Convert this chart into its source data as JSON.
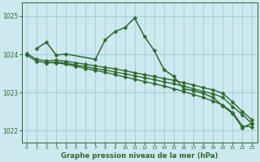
{
  "title": "Graphe pression niveau de la mer (hPa)",
  "xlabel_hours": [
    0,
    1,
    2,
    3,
    4,
    5,
    6,
    7,
    8,
    9,
    10,
    11,
    12,
    13,
    14,
    15,
    16,
    17,
    18,
    19,
    20,
    21,
    22,
    23
  ],
  "series": [
    {
      "x": [
        1,
        2,
        3,
        4,
        7,
        8,
        9,
        10,
        11,
        12,
        13,
        14,
        15,
        16,
        17,
        18,
        19,
        20,
        21,
        22,
        23
      ],
      "y": [
        1024.15,
        1024.32,
        1023.98,
        1024.01,
        1023.87,
        1024.38,
        1024.6,
        1024.7,
        1024.95,
        1024.47,
        1024.1,
        1023.6,
        1023.42,
        1023.1,
        1023.05,
        1022.98,
        1022.87,
        1022.65,
        1022.45,
        1022.08,
        1022.2
      ],
      "color": "#2d6a2d",
      "marker": "D",
      "markersize": 2.5,
      "linewidth": 1.1
    },
    {
      "x": [
        0,
        1,
        2,
        3,
        4,
        5,
        6,
        7,
        8,
        9,
        10,
        11,
        12,
        13,
        14,
        15,
        16,
        17,
        18,
        19,
        20,
        21,
        22,
        23
      ],
      "y": [
        1024.02,
        1023.87,
        1023.83,
        1023.85,
        1023.82,
        1023.78,
        1023.74,
        1023.7,
        1023.66,
        1023.62,
        1023.57,
        1023.52,
        1023.47,
        1023.42,
        1023.37,
        1023.32,
        1023.26,
        1023.2,
        1023.13,
        1023.07,
        1022.98,
        1022.75,
        1022.5,
        1022.28
      ],
      "color": "#2d6a2d",
      "marker": "D",
      "markersize": 2.5,
      "linewidth": 1.0
    },
    {
      "x": [
        0,
        1,
        2,
        3,
        4,
        5,
        6,
        7,
        8,
        9,
        10,
        11,
        12,
        13,
        14,
        15,
        16,
        17,
        18,
        19,
        20,
        21,
        22,
        23
      ],
      "y": [
        1023.98,
        1023.82,
        1023.78,
        1023.8,
        1023.77,
        1023.72,
        1023.68,
        1023.63,
        1023.59,
        1023.54,
        1023.49,
        1023.44,
        1023.39,
        1023.34,
        1023.28,
        1023.23,
        1023.17,
        1023.1,
        1023.03,
        1022.97,
        1022.87,
        1022.63,
        1022.42,
        1022.18
      ],
      "color": "#2d6a2d",
      "marker": "D",
      "markersize": 2.5,
      "linewidth": 1.0
    },
    {
      "x": [
        2,
        3,
        4,
        5,
        6,
        7,
        8,
        9,
        10,
        11,
        12,
        13,
        14,
        15,
        16,
        17,
        18,
        19,
        20,
        21,
        22,
        23
      ],
      "y": [
        1023.78,
        1023.78,
        1023.74,
        1023.69,
        1023.63,
        1023.58,
        1023.53,
        1023.47,
        1023.41,
        1023.35,
        1023.29,
        1023.23,
        1023.17,
        1023.1,
        1023.03,
        1022.95,
        1022.87,
        1022.78,
        1022.67,
        1022.48,
        1022.12,
        1022.1
      ],
      "color": "#2d6a2d",
      "marker": "D",
      "markersize": 2.5,
      "linewidth": 1.0
    }
  ],
  "ylim": [
    1021.7,
    1025.35
  ],
  "yticks": [
    1022,
    1023,
    1024,
    1025
  ],
  "bg_color": "#cde8ef",
  "grid_color": "#9ecdd8",
  "line_color": "#2d6a2d",
  "label_color": "#2d6a2d",
  "title_color": "#2d6a2d"
}
